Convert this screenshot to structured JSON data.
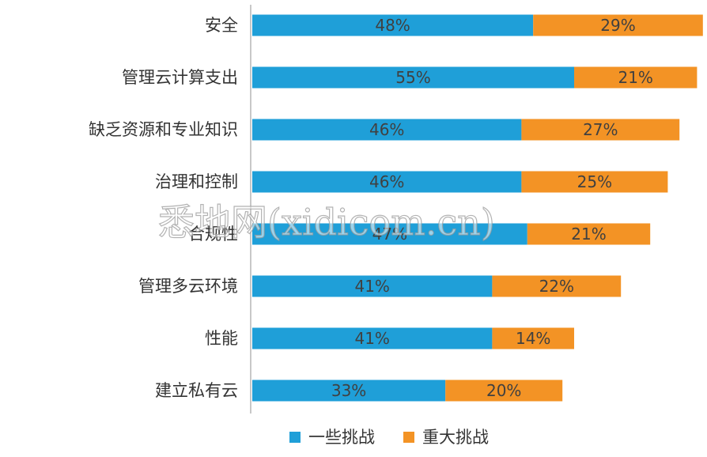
{
  "chart_data": {
    "type": "bar",
    "orientation": "horizontal",
    "stacked": true,
    "categories": [
      "安全",
      "管理云计算支出",
      "缺乏资源和专业知识",
      "治理和控制",
      "合规性",
      "管理多云环境",
      "性能",
      "建立私有云"
    ],
    "series": [
      {
        "name": "一些挑战",
        "color": "#1f9fd8",
        "values": [
          48,
          55,
          46,
          46,
          47,
          41,
          41,
          33
        ]
      },
      {
        "name": "重大挑战",
        "color": "#f39325",
        "values": [
          29,
          21,
          27,
          25,
          21,
          22,
          14,
          20
        ]
      }
    ],
    "value_suffix": "%",
    "xlim": [
      0,
      77
    ],
    "grid": false,
    "legend_position": "bottom"
  },
  "watermark": {
    "text": "悉地网(xidicom.cn)"
  }
}
